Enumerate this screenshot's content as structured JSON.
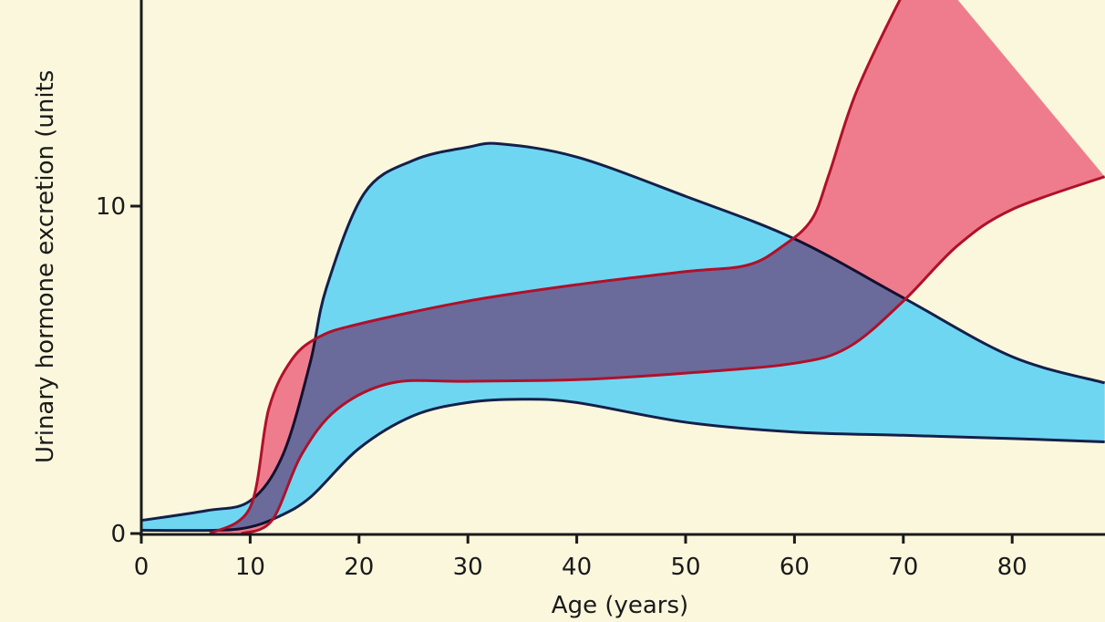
{
  "chart_data": {
    "type": "area",
    "title": "",
    "xlabel": "Age (years)",
    "ylabel": "Urinary hormone excretion (units",
    "xlim": [
      0,
      88.5
    ],
    "ylim": [
      0,
      16.3
    ],
    "x_ticks": [
      "0",
      "10",
      "20",
      "30",
      "40",
      "50",
      "60",
      "70",
      "80"
    ],
    "y_ticks": [
      "0",
      "10"
    ],
    "grid": false,
    "legend": "none",
    "series": [
      {
        "color": "#6fd6f2",
        "edge_color": "#14204a",
        "upper": [
          [
            0,
            0.4
          ],
          [
            6,
            0.7
          ],
          [
            10,
            1.0
          ],
          [
            13,
            2.4
          ],
          [
            15.5,
            5.2
          ],
          [
            17,
            7.5
          ],
          [
            20.5,
            10.4
          ],
          [
            25,
            11.4
          ],
          [
            30,
            11.8
          ],
          [
            33,
            11.9
          ],
          [
            40,
            11.5
          ],
          [
            50,
            10.3
          ],
          [
            60,
            9.0
          ],
          [
            70,
            7.2
          ],
          [
            80,
            5.4
          ],
          [
            88.5,
            4.6
          ]
        ],
        "lower": [
          [
            0,
            0.1
          ],
          [
            7,
            0.1
          ],
          [
            10,
            0.2
          ],
          [
            12.5,
            0.5
          ],
          [
            15.5,
            1.1
          ],
          [
            20,
            2.6
          ],
          [
            25,
            3.6
          ],
          [
            30,
            4.0
          ],
          [
            35,
            4.1
          ],
          [
            40,
            4.0
          ],
          [
            50,
            3.4
          ],
          [
            60,
            3.1
          ],
          [
            70,
            3.0
          ],
          [
            80,
            2.9
          ],
          [
            88.5,
            2.8
          ]
        ]
      },
      {
        "color": "#ee4f7e",
        "edge_color": "#b0102a",
        "upper": [
          [
            6.3,
            0.0
          ],
          [
            10,
            0.8
          ],
          [
            11.7,
            3.8
          ],
          [
            13.8,
            5.3
          ],
          [
            16.3,
            6.0
          ],
          [
            20,
            6.4
          ],
          [
            30,
            7.1
          ],
          [
            40,
            7.6
          ],
          [
            50,
            8.0
          ],
          [
            55.7,
            8.2
          ],
          [
            59,
            8.8
          ],
          [
            61.6,
            9.6
          ],
          [
            63.2,
            11.0
          ],
          [
            65.7,
            13.5
          ],
          [
            70,
            16.5
          ],
          [
            72,
            17.5
          ]
        ],
        "lower": [
          [
            9.2,
            0.0
          ],
          [
            12,
            0.4
          ],
          [
            14.7,
            2.4
          ],
          [
            18,
            3.8
          ],
          [
            23,
            4.6
          ],
          [
            30,
            4.65
          ],
          [
            40,
            4.7
          ],
          [
            50,
            4.9
          ],
          [
            60,
            5.2
          ],
          [
            65,
            5.7
          ],
          [
            70,
            7.1
          ],
          [
            75,
            8.8
          ],
          [
            80,
            9.9
          ],
          [
            88.5,
            10.9
          ]
        ]
      }
    ]
  },
  "colors": {
    "background": "#fbf7dc",
    "axis": "#1a1a1a"
  }
}
